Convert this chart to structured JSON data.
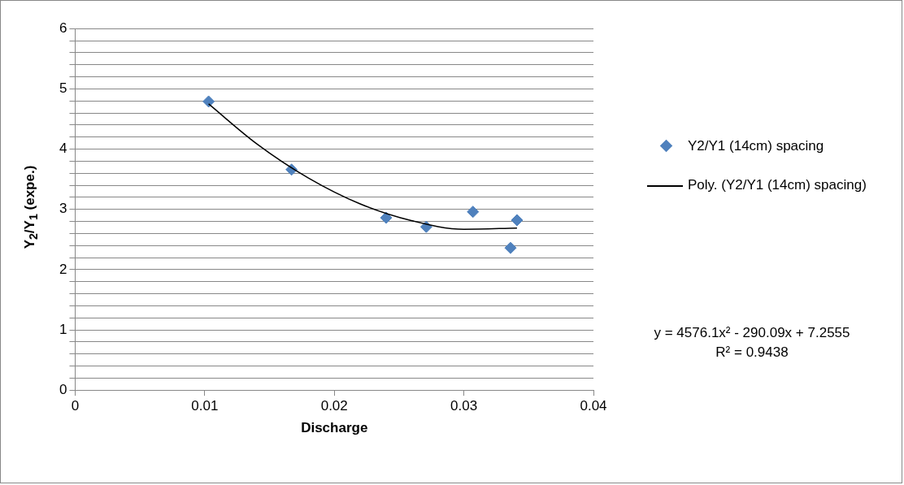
{
  "chart_data": {
    "type": "scatter",
    "xlabel": "Discharge",
    "ylabel": "Y$_{2}$/Y$_{1}$ (expe.)",
    "xlim": [
      0,
      0.04
    ],
    "xticks": [
      0,
      0.01,
      0.02,
      0.03,
      0.04
    ],
    "ylim": [
      0,
      6
    ],
    "yticks": [
      0,
      {
        "value": 0.2,
        "label": null
      },
      {
        "value": 0.4,
        "label": null
      },
      {
        "value": 0.6,
        "label": null
      },
      {
        "value": 0.8,
        "label": null
      },
      1,
      {
        "value": 1.2,
        "label": null
      },
      {
        "value": 1.4,
        "label": null
      },
      {
        "value": 1.6,
        "label": null
      },
      {
        "value": 1.8,
        "label": null
      },
      2,
      {
        "value": 2.2,
        "label": null
      },
      {
        "value": 2.4,
        "label": null
      },
      {
        "value": 2.6,
        "label": null
      },
      {
        "value": 2.8,
        "label": null
      },
      3,
      {
        "value": 3.2,
        "label": null
      },
      {
        "value": 3.4,
        "label": null
      },
      {
        "value": 3.6,
        "label": null
      },
      {
        "value": 3.8,
        "label": null
      },
      4,
      {
        "value": 4.2,
        "label": null
      },
      {
        "value": 4.4,
        "label": null
      },
      {
        "value": 4.6,
        "label": null
      },
      {
        "value": 4.8,
        "label": null
      },
      5,
      {
        "value": 5.2,
        "label": null
      },
      {
        "value": 5.4,
        "label": null
      },
      {
        "value": 5.6,
        "label": null
      },
      {
        "value": 5.8,
        "label": null
      },
      6
    ],
    "grid": "y",
    "legend": "right",
    "series": [
      {
        "name": "Y2/Y1 (14cm) spacing",
        "type": "scatter",
        "marker": "diamond",
        "color": "#4f81bd",
        "x": [
          0.0103,
          0.0167,
          0.024,
          0.0271,
          0.0307,
          0.0336,
          0.0341
        ],
        "values": [
          4.79,
          3.66,
          2.86,
          2.71,
          2.96,
          2.36,
          2.82
        ]
      },
      {
        "name": "Poly. (Y2/Y1 (14cm) spacing)",
        "type": "line",
        "marker": "none",
        "color": "#000000",
        "x": [
          0.0103,
          0.014,
          0.018,
          0.022,
          0.026,
          0.03,
          0.0341
        ],
        "values": [
          4.75,
          4.09,
          3.52,
          3.09,
          2.81,
          2.67,
          2.69
        ]
      }
    ],
    "annotations": [
      "y = 4576.1x² - 290.09x + 7.2555",
      "R² = 0.9438"
    ]
  }
}
